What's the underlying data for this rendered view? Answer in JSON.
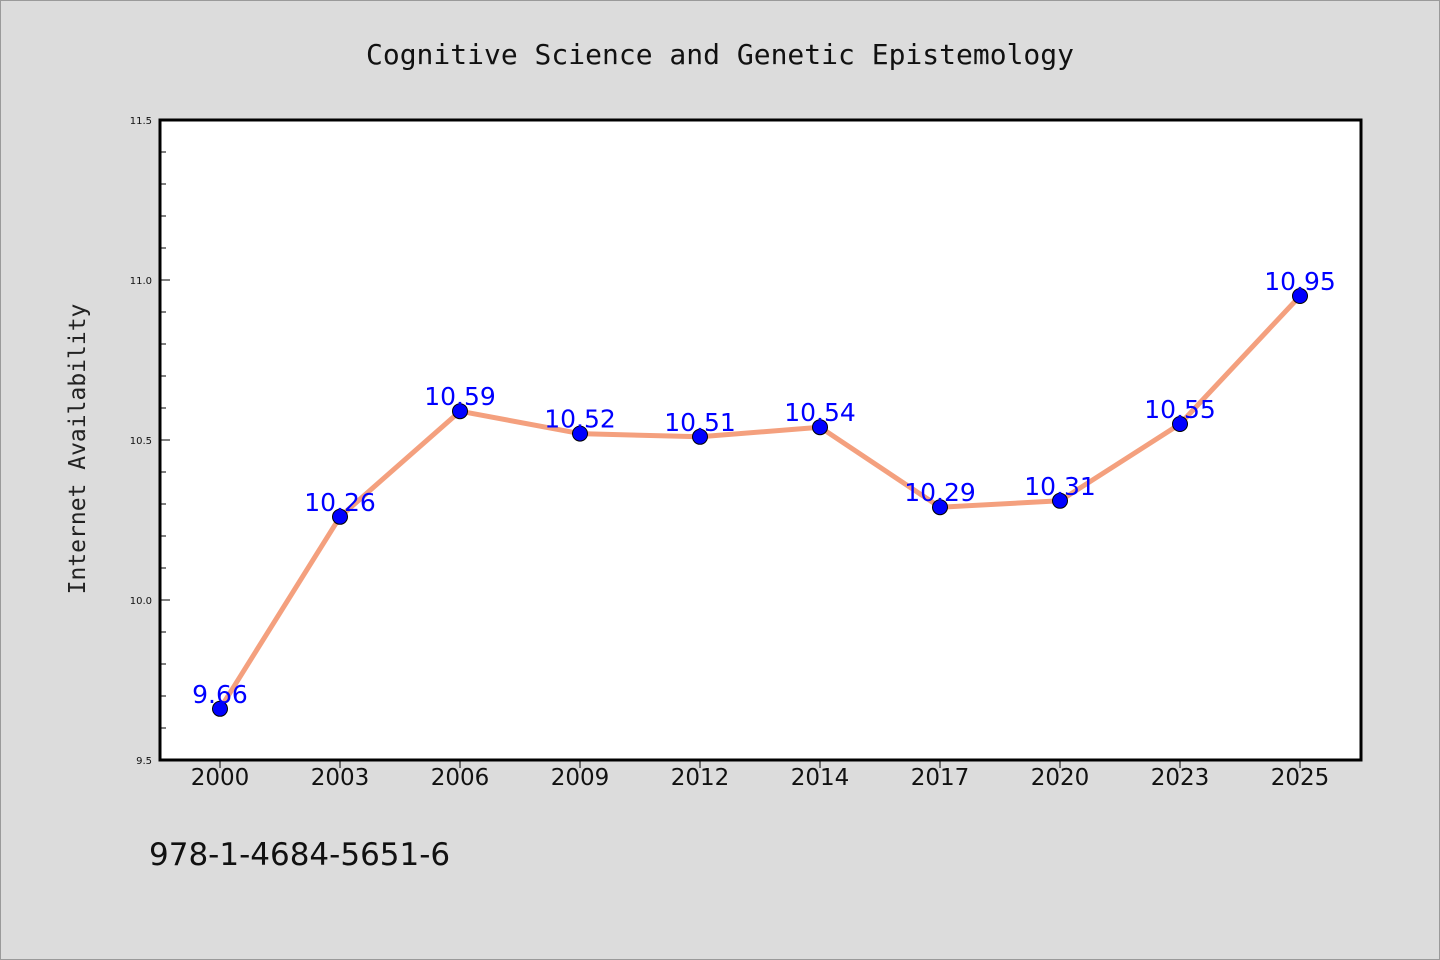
{
  "colors": {
    "background": "#dcdcdc",
    "plot_background": "#ffffff",
    "line": "#f4a07e",
    "marker": "#0000ff",
    "label": "#0000ff",
    "axis": "#000000"
  },
  "footer": {
    "isbn": "978-1-4684-5651-6"
  },
  "chart_data": {
    "type": "line",
    "title": "Cognitive Science and Genetic Epistemology",
    "xlabel": "",
    "ylabel": "Internet Availability",
    "categories": [
      "2000",
      "2003",
      "2006",
      "2009",
      "2012",
      "2014",
      "2017",
      "2020",
      "2023",
      "2025"
    ],
    "series": [
      {
        "values": [
          9.66,
          10.26,
          10.59,
          10.52,
          10.51,
          10.54,
          10.29,
          10.31,
          10.55,
          10.95
        ],
        "labels": [
          "9.66",
          "10.26",
          "10.59",
          "10.52",
          "10.51",
          "10.54",
          "10.29",
          "10.31",
          "10.55",
          "10.95"
        ]
      }
    ],
    "ylim": [
      9.5,
      11.5
    ],
    "yticks": [
      "9.5",
      "10.0",
      "10.5",
      "11.0",
      "11.5"
    ],
    "grid": false,
    "legend": "none"
  }
}
